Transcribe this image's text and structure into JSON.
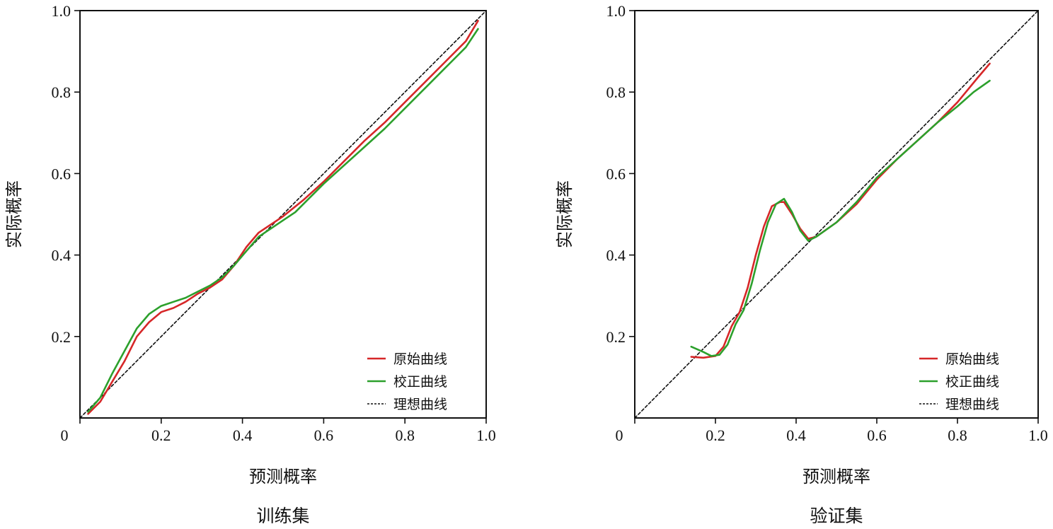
{
  "chart_data": [
    {
      "type": "line",
      "caption": "训练集",
      "xlabel": "预测概率",
      "ylabel": "实际概率",
      "xlim": [
        0,
        1.0
      ],
      "ylim": [
        0,
        1.0
      ],
      "x_ticks": [
        "0",
        "0.2",
        "0.4",
        "0.6",
        "0.8",
        "1.0"
      ],
      "y_ticks": [
        "0.2",
        "0.4",
        "0.6",
        "0.8",
        "1.0"
      ],
      "legend_position": "bottom-right",
      "series": [
        {
          "name": "原始曲线",
          "color": "#d62728",
          "x": [
            0.02,
            0.05,
            0.08,
            0.11,
            0.14,
            0.17,
            0.2,
            0.23,
            0.26,
            0.29,
            0.32,
            0.35,
            0.38,
            0.41,
            0.44,
            0.47,
            0.5,
            0.55,
            0.6,
            0.65,
            0.7,
            0.75,
            0.8,
            0.85,
            0.9,
            0.95,
            0.98
          ],
          "y": [
            0.01,
            0.04,
            0.09,
            0.14,
            0.2,
            0.235,
            0.26,
            0.27,
            0.285,
            0.305,
            0.32,
            0.34,
            0.375,
            0.42,
            0.455,
            0.475,
            0.495,
            0.535,
            0.58,
            0.63,
            0.68,
            0.725,
            0.775,
            0.825,
            0.875,
            0.925,
            0.975
          ]
        },
        {
          "name": "校正曲线",
          "color": "#2ca02c",
          "x": [
            0.02,
            0.05,
            0.08,
            0.11,
            0.14,
            0.17,
            0.2,
            0.23,
            0.26,
            0.29,
            0.32,
            0.35,
            0.38,
            0.41,
            0.44,
            0.47,
            0.5,
            0.53,
            0.56,
            0.6,
            0.65,
            0.7,
            0.75,
            0.8,
            0.85,
            0.9,
            0.95,
            0.98
          ],
          "y": [
            0.015,
            0.05,
            0.11,
            0.165,
            0.22,
            0.255,
            0.275,
            0.285,
            0.295,
            0.31,
            0.325,
            0.345,
            0.375,
            0.41,
            0.445,
            0.465,
            0.485,
            0.505,
            0.535,
            0.575,
            0.62,
            0.665,
            0.71,
            0.76,
            0.81,
            0.86,
            0.91,
            0.955
          ]
        },
        {
          "name": "理想曲线",
          "color": "#111111",
          "dashed": true,
          "x": [
            0,
            1.0
          ],
          "y": [
            0,
            1.0
          ]
        }
      ]
    },
    {
      "type": "line",
      "caption": "验证集",
      "xlabel": "预测概率",
      "ylabel": "实际概率",
      "xlim": [
        0,
        1.0
      ],
      "ylim": [
        0,
        1.0
      ],
      "x_ticks": [
        "0",
        "0.2",
        "0.4",
        "0.6",
        "0.8",
        "1.0"
      ],
      "y_ticks": [
        "0.2",
        "0.4",
        "0.6",
        "0.8",
        "1.0"
      ],
      "legend_position": "bottom-right",
      "series": [
        {
          "name": "原始曲线",
          "color": "#d62728",
          "x": [
            0.14,
            0.17,
            0.2,
            0.22,
            0.24,
            0.26,
            0.28,
            0.3,
            0.32,
            0.34,
            0.36,
            0.37,
            0.39,
            0.41,
            0.43,
            0.45,
            0.5,
            0.55,
            0.6,
            0.65,
            0.7,
            0.75,
            0.8,
            0.85,
            0.88
          ],
          "y": [
            0.15,
            0.148,
            0.152,
            0.175,
            0.225,
            0.26,
            0.32,
            0.4,
            0.47,
            0.52,
            0.53,
            0.53,
            0.5,
            0.465,
            0.44,
            0.445,
            0.48,
            0.525,
            0.585,
            0.635,
            0.68,
            0.725,
            0.775,
            0.835,
            0.87
          ]
        },
        {
          "name": "校正曲线",
          "color": "#2ca02c",
          "x": [
            0.14,
            0.17,
            0.19,
            0.21,
            0.23,
            0.25,
            0.27,
            0.29,
            0.31,
            0.33,
            0.35,
            0.37,
            0.39,
            0.41,
            0.43,
            0.45,
            0.5,
            0.55,
            0.6,
            0.65,
            0.7,
            0.75,
            0.8,
            0.84,
            0.88
          ],
          "y": [
            0.175,
            0.162,
            0.152,
            0.155,
            0.18,
            0.23,
            0.265,
            0.33,
            0.41,
            0.48,
            0.525,
            0.538,
            0.505,
            0.46,
            0.435,
            0.445,
            0.48,
            0.53,
            0.59,
            0.635,
            0.68,
            0.725,
            0.765,
            0.8,
            0.828
          ]
        },
        {
          "name": "理想曲线",
          "color": "#111111",
          "dashed": true,
          "x": [
            0,
            1.0
          ],
          "y": [
            0,
            1.0
          ]
        }
      ]
    }
  ]
}
